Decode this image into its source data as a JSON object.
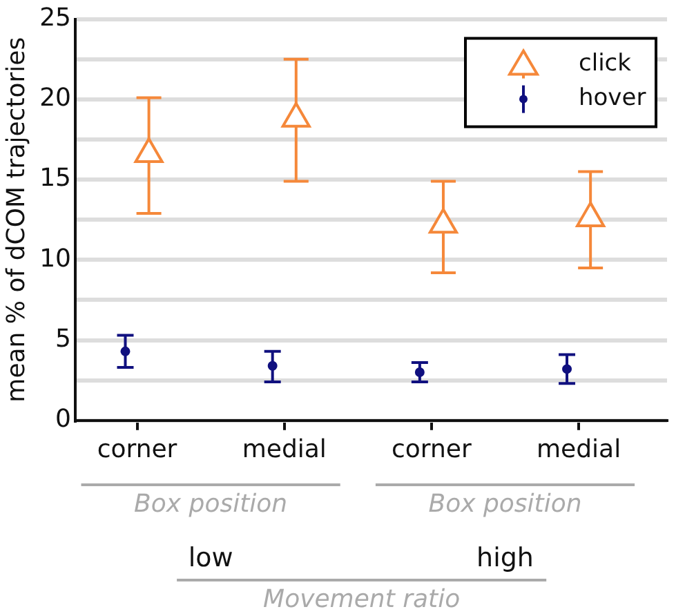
{
  "chart_data": {
    "type": "scatter",
    "ylabel": "mean % of dCOM trajectories",
    "xlabel": "Movement ratio",
    "categories": [
      "corner",
      "medial",
      "corner",
      "medial"
    ],
    "series": [
      {
        "name": "click",
        "color": "#f5883a",
        "marker": "triangle",
        "values": [
          16.6,
          18.8,
          12.2,
          12.6
        ],
        "errors": [
          [
            12.9,
            20.1
          ],
          [
            14.9,
            22.5
          ],
          [
            9.2,
            14.9
          ],
          [
            9.5,
            15.5
          ]
        ]
      },
      {
        "name": "hover",
        "color": "#10107f",
        "marker": "circle",
        "values": [
          4.3,
          3.4,
          3.0,
          3.2
        ],
        "errors": [
          [
            3.3,
            5.3
          ],
          [
            2.4,
            4.3
          ],
          [
            2.4,
            3.6
          ],
          [
            2.3,
            4.1
          ]
        ]
      }
    ],
    "ylim": [
      0,
      25
    ],
    "yticks": [
      0,
      {
        "value": 2.5,
        "label": null
      },
      5,
      {
        "value": 7.5,
        "label": null
      },
      10,
      {
        "value": 12.5,
        "label": null
      },
      15,
      {
        "value": 17.5,
        "label": null
      },
      20,
      {
        "value": 22.5,
        "label": null
      },
      25
    ],
    "grid": "y",
    "legend": "top right",
    "annotations": [
      "Box position",
      "Box position",
      "low",
      "high"
    ]
  }
}
